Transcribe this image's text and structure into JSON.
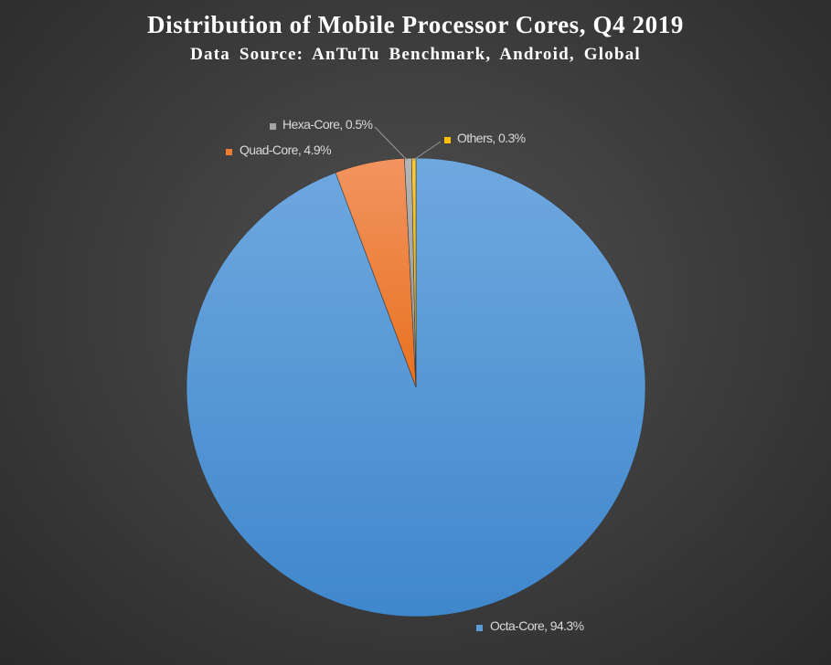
{
  "chart_data": {
    "type": "pie",
    "title": "Distribution of Mobile Processor Cores, Q4 2019",
    "subtitle": "Data Source: AnTuTu  Benchmark,  Android,  Global",
    "slices": [
      {
        "label": "Octa-Core",
        "value": 94.3,
        "display": "Octa-Core, 94.3%",
        "color": "#5B9BD5"
      },
      {
        "label": "Quad-Core",
        "value": 4.9,
        "display": "Quad-Core, 4.9%",
        "color": "#ED7D31"
      },
      {
        "label": "Hexa-Core",
        "value": 0.5,
        "display": "Hexa-Core, 0.5%",
        "color": "#A5A5A5"
      },
      {
        "label": "Others",
        "value": 0.3,
        "display": "Others, 0.3%",
        "color": "#FFC000"
      }
    ]
  }
}
